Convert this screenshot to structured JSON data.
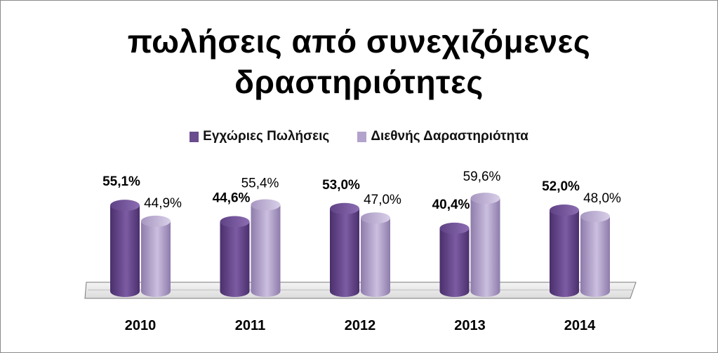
{
  "chart_data": {
    "type": "bar",
    "title": "πωλήσεις από συνεχιζόμενες δραστηριότητες",
    "title_lines": [
      "πωλήσεις από συνεχιζόμενες",
      "δραστηριότητες"
    ],
    "categories": [
      "2010",
      "2011",
      "2012",
      "2013",
      "2014"
    ],
    "series": [
      {
        "name": "Εγχώριες Πωλήσεις",
        "values": [
          55.1,
          44.6,
          53.0,
          40.4,
          52.0
        ],
        "labels": [
          "55,1%",
          "44,6%",
          "53,0%",
          "40,4%",
          "52,0%"
        ],
        "color": "#6b4c8e"
      },
      {
        "name": "Διεθνής Δαραστηριότητα",
        "values": [
          44.9,
          55.4,
          47.0,
          59.6,
          48.0
        ],
        "labels": [
          "44,9%",
          "55,4%",
          "47,0%",
          "59,6%",
          "48,0%"
        ],
        "color": "#b3a2cc"
      }
    ],
    "legend_position": "top",
    "grid": false,
    "ylim": [
      0,
      70
    ],
    "style": "3d-cylinder"
  }
}
